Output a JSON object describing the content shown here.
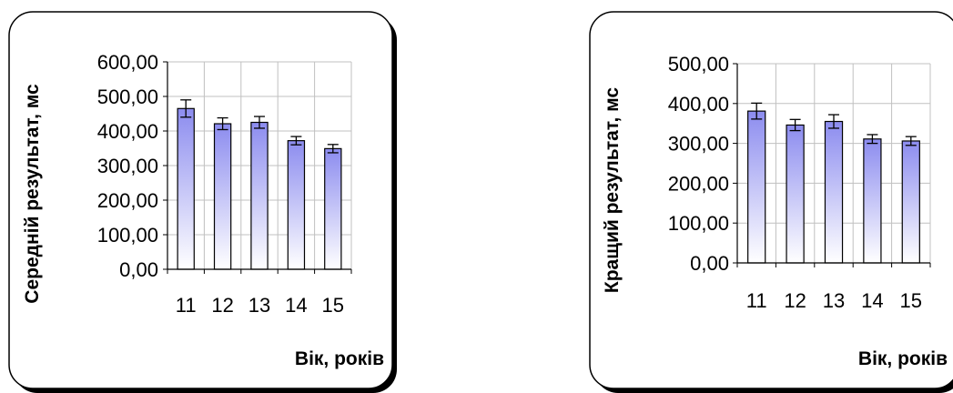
{
  "chart_data": [
    {
      "type": "bar",
      "categories": [
        "11",
        "12",
        "13",
        "14",
        "15"
      ],
      "values": [
        465,
        421,
        425,
        372,
        349
      ],
      "errors": [
        25,
        17,
        17,
        12,
        12
      ],
      "ylabel": "Середній результат, мс",
      "xlabel": "Вік, років",
      "ylim": [
        0,
        600
      ],
      "yticks": [
        "0,00",
        "100,00",
        "200,00",
        "300,00",
        "400,00",
        "500,00",
        "600,00"
      ],
      "grid": true
    },
    {
      "type": "bar",
      "categories": [
        "11",
        "12",
        "13",
        "14",
        "15"
      ],
      "values": [
        381,
        346,
        355,
        311,
        306
      ],
      "errors": [
        20,
        14,
        17,
        11,
        11
      ],
      "ylabel": "Кращий результат, мс",
      "xlabel": "Вік, років",
      "ylim": [
        0,
        500
      ],
      "yticks": [
        "0,00",
        "100,00",
        "200,00",
        "300,00",
        "400,00",
        "500,00"
      ],
      "grid": true
    }
  ],
  "colors": {
    "bar_top": "#8c8cef",
    "bar_bottom": "#ffffff",
    "grid": "#c0c0c0"
  }
}
